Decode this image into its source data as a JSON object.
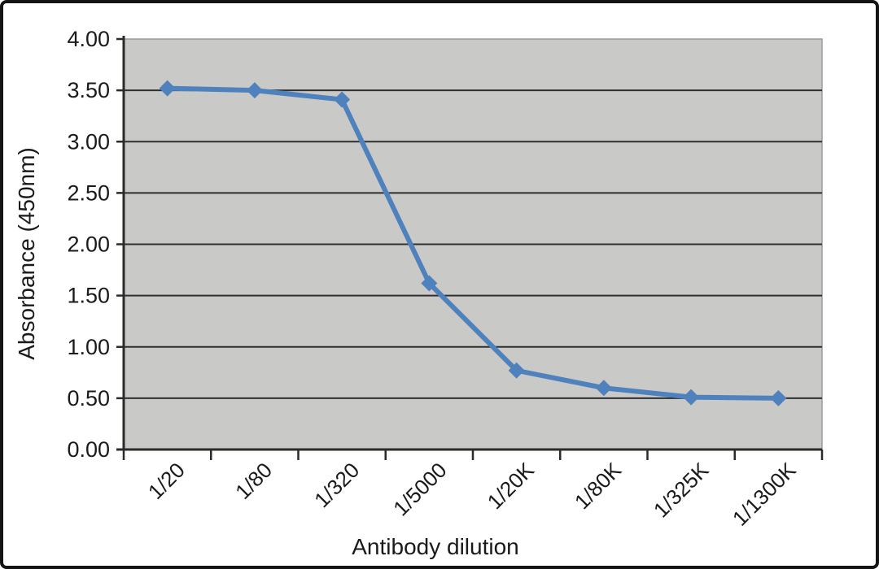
{
  "figure": {
    "kind": "ELISA titration line chart"
  },
  "chart_data": {
    "type": "line",
    "title": "",
    "xlabel": "Antibody dilution",
    "ylabel": "Absorbance (450nm)",
    "categories": [
      "1/20",
      "1/80",
      "1/320",
      "1/5000",
      "1/20K",
      "1/80K",
      "1/325K",
      "1/1300K"
    ],
    "series": [
      {
        "name": "Absorbance",
        "values": [
          3.52,
          3.5,
          3.41,
          1.62,
          0.77,
          0.6,
          0.51,
          0.5
        ]
      }
    ],
    "ylim": [
      0,
      4
    ],
    "ytick_step": 0.5,
    "ytick_labels": [
      "0.00",
      "0.50",
      "1.00",
      "1.50",
      "2.00",
      "2.50",
      "3.00",
      "3.50",
      "4.00"
    ],
    "xtick_rotation_deg": 45,
    "grid": true,
    "legend": false,
    "marker": "diamond",
    "colors": {
      "line": "#4f81bd",
      "marker": "#4f81bd",
      "plot_bg": "#c9c9c7",
      "plot_border": "#9b9b9b",
      "grid": "#2f2f2f",
      "axis": "#2b2b2b",
      "text": "#1a1a1a",
      "frame": "#141414",
      "page_bg": "#ffffff"
    }
  }
}
